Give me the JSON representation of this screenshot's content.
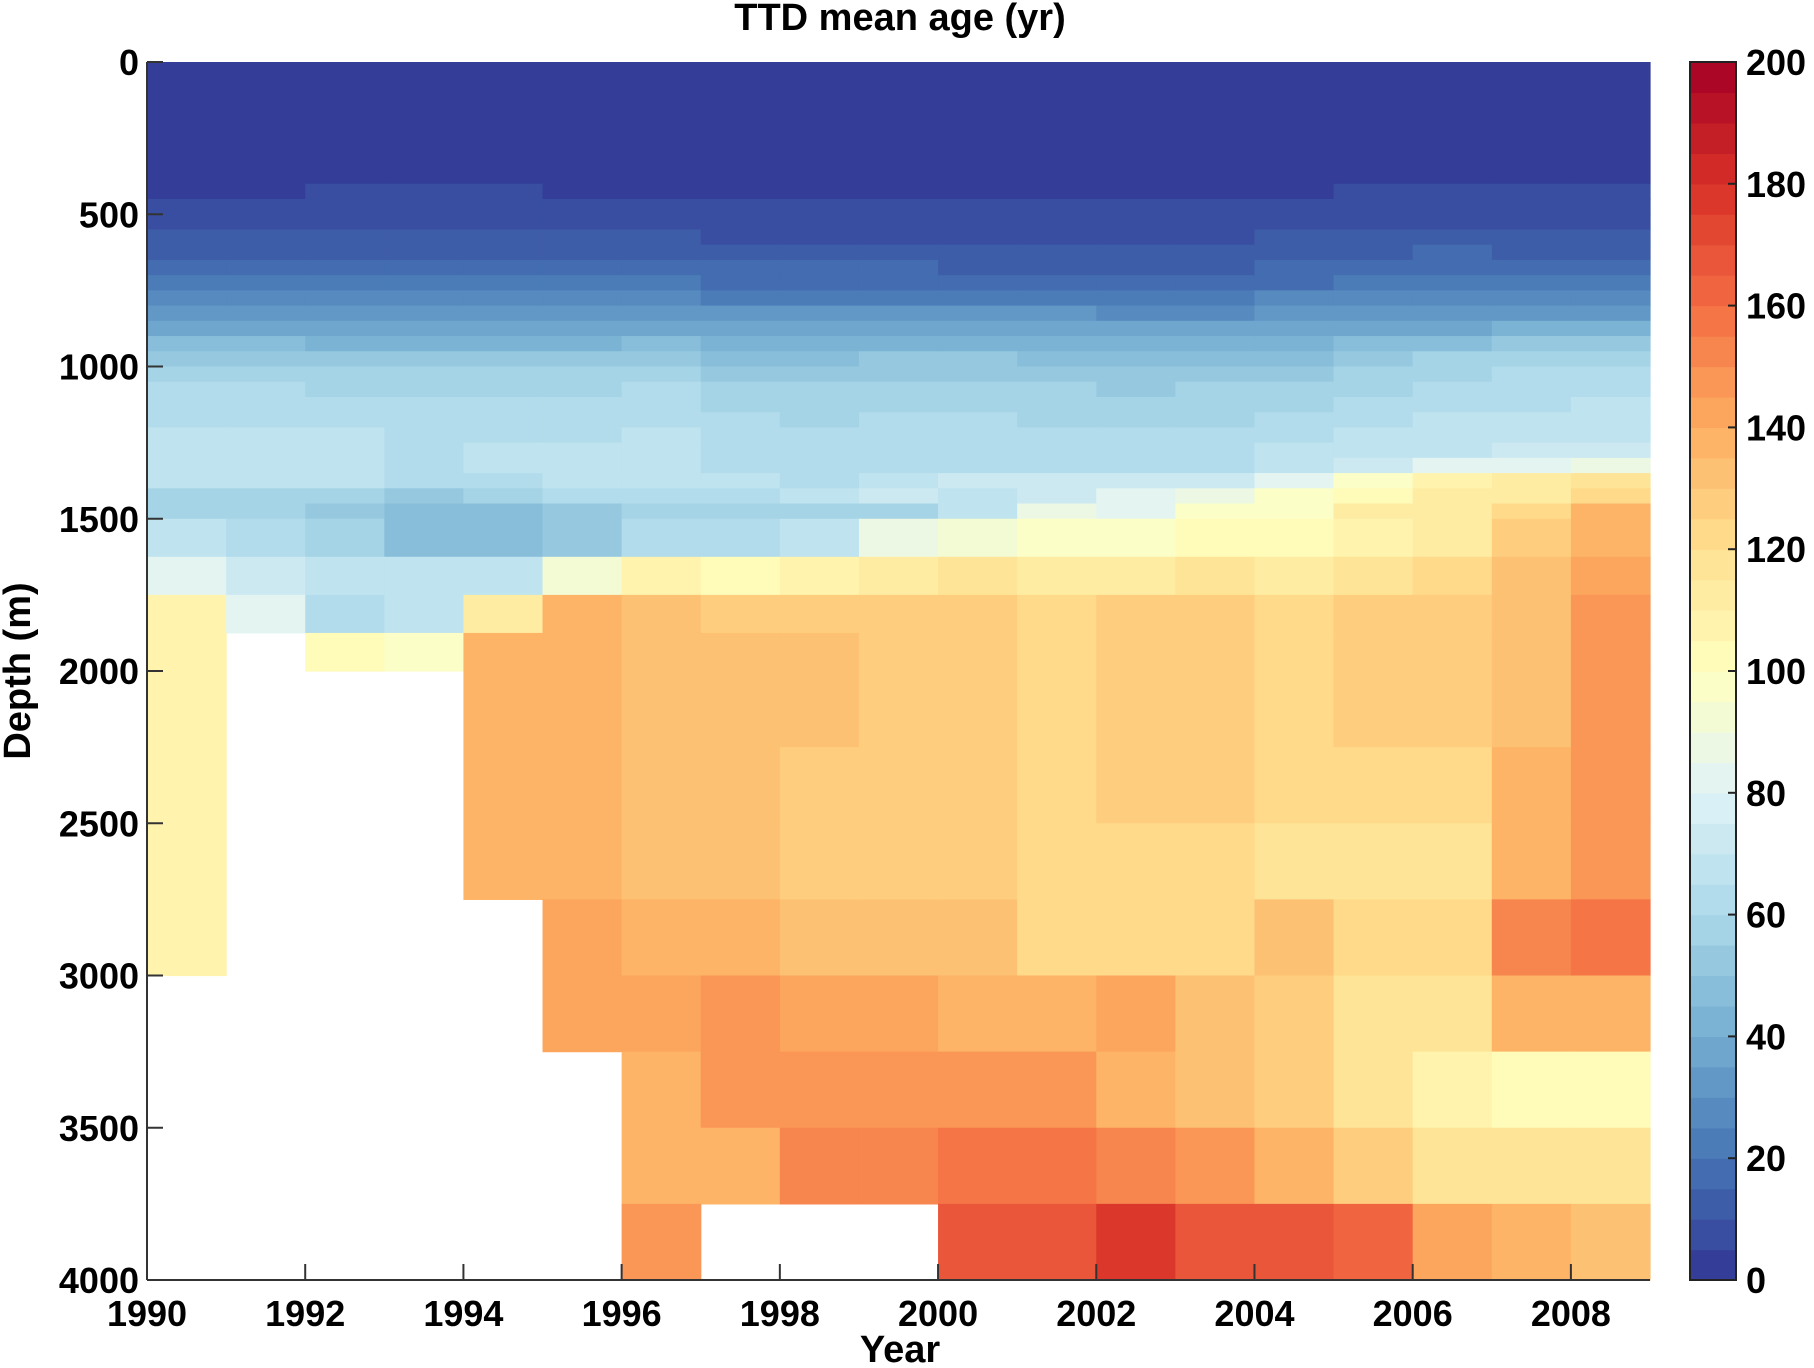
{
  "chart_data": {
    "type": "heatmap",
    "title": "TTD mean age (yr)",
    "xlabel": "Year",
    "ylabel": "Depth (m)",
    "xlim": [
      1990,
      2009
    ],
    "ylim": [
      0,
      4000
    ],
    "y_reversed": true,
    "xticks": [
      1990,
      1992,
      1994,
      1996,
      1998,
      2000,
      2002,
      2004,
      2006,
      2008
    ],
    "xtick_labels": [
      "1990",
      "1992",
      "1994",
      "1996",
      "1998",
      "2000",
      "2002",
      "2004",
      "2006",
      "2008"
    ],
    "yticks": [
      0,
      500,
      1000,
      1500,
      2000,
      2500,
      3000,
      3500,
      4000
    ],
    "ytick_labels": [
      "0",
      "500",
      "1000",
      "1500",
      "2000",
      "2500",
      "3000",
      "3500",
      "4000"
    ],
    "years": [
      1990,
      1991,
      1992,
      1993,
      1994,
      1995,
      1996,
      1997,
      1998,
      1999,
      2000,
      2001,
      2002,
      2003,
      2004,
      2005,
      2006,
      2007,
      2008
    ],
    "depth_edges": [
      0,
      400,
      450,
      500,
      550,
      600,
      650,
      700,
      750,
      800,
      850,
      900,
      950,
      1000,
      1050,
      1100,
      1150,
      1200,
      1250,
      1300,
      1350,
      1400,
      1450,
      1500,
      1625,
      1750,
      1875,
      2000,
      2250,
      2500,
      2750,
      3000,
      3250,
      3500,
      3750,
      4000
    ],
    "values": [
      [
        2,
        2,
        2,
        2,
        2,
        2,
        2,
        2,
        2,
        2,
        2,
        2,
        2,
        2,
        2,
        2,
        2,
        2,
        2
      ],
      [
        2,
        2,
        7,
        7,
        7,
        2,
        2,
        2,
        2,
        2,
        2,
        2,
        2,
        2,
        2,
        7,
        7,
        7,
        7
      ],
      [
        7,
        7,
        7,
        7,
        7,
        7,
        7,
        7,
        7,
        7,
        7,
        7,
        7,
        7,
        7,
        7,
        7,
        7,
        7
      ],
      [
        7,
        7,
        7,
        7,
        7,
        7,
        7,
        7,
        7,
        7,
        7,
        7,
        7,
        7,
        7,
        7,
        7,
        7,
        7
      ],
      [
        12,
        12,
        12,
        12,
        12,
        12,
        12,
        7,
        7,
        7,
        7,
        7,
        7,
        7,
        12,
        12,
        12,
        12,
        12
      ],
      [
        12,
        12,
        12,
        12,
        12,
        12,
        12,
        12,
        12,
        12,
        12,
        12,
        12,
        12,
        12,
        12,
        17,
        12,
        12
      ],
      [
        17,
        17,
        17,
        17,
        17,
        17,
        17,
        17,
        17,
        17,
        12,
        12,
        12,
        12,
        17,
        17,
        17,
        17,
        17
      ],
      [
        22,
        22,
        22,
        22,
        22,
        22,
        22,
        17,
        17,
        17,
        17,
        17,
        17,
        17,
        17,
        22,
        22,
        22,
        22
      ],
      [
        27,
        27,
        27,
        27,
        27,
        27,
        27,
        22,
        22,
        22,
        22,
        22,
        22,
        22,
        27,
        27,
        27,
        27,
        27
      ],
      [
        32,
        32,
        32,
        32,
        32,
        32,
        32,
        32,
        32,
        32,
        32,
        32,
        27,
        27,
        32,
        32,
        32,
        32,
        32
      ],
      [
        37,
        37,
        37,
        37,
        37,
        37,
        37,
        37,
        37,
        37,
        37,
        37,
        37,
        37,
        37,
        37,
        37,
        42,
        42
      ],
      [
        47,
        47,
        42,
        42,
        42,
        42,
        47,
        42,
        42,
        42,
        42,
        42,
        42,
        42,
        42,
        47,
        47,
        52,
        52
      ],
      [
        52,
        52,
        52,
        52,
        52,
        52,
        52,
        47,
        47,
        52,
        52,
        47,
        47,
        47,
        47,
        52,
        57,
        57,
        57
      ],
      [
        57,
        57,
        57,
        57,
        57,
        57,
        57,
        52,
        52,
        52,
        52,
        52,
        52,
        52,
        52,
        57,
        57,
        62,
        62
      ],
      [
        62,
        62,
        57,
        57,
        57,
        57,
        62,
        57,
        57,
        57,
        57,
        57,
        52,
        57,
        57,
        57,
        62,
        62,
        62
      ],
      [
        62,
        62,
        62,
        62,
        62,
        62,
        62,
        57,
        57,
        57,
        57,
        57,
        57,
        57,
        57,
        62,
        62,
        62,
        67
      ],
      [
        62,
        62,
        62,
        62,
        62,
        62,
        62,
        62,
        57,
        62,
        62,
        57,
        57,
        57,
        62,
        62,
        67,
        67,
        67
      ],
      [
        67,
        67,
        67,
        62,
        62,
        62,
        67,
        62,
        62,
        62,
        62,
        62,
        62,
        62,
        62,
        67,
        67,
        67,
        67
      ],
      [
        67,
        67,
        67,
        62,
        67,
        67,
        67,
        62,
        62,
        62,
        62,
        62,
        62,
        62,
        67,
        67,
        67,
        72,
        72
      ],
      [
        67,
        67,
        67,
        62,
        67,
        67,
        67,
        62,
        62,
        62,
        62,
        62,
        62,
        62,
        67,
        72,
        80,
        80,
        87
      ],
      [
        67,
        67,
        67,
        62,
        62,
        67,
        67,
        67,
        62,
        67,
        72,
        72,
        72,
        72,
        82,
        97,
        107,
        112,
        117
      ],
      [
        57,
        57,
        57,
        52,
        57,
        62,
        62,
        62,
        67,
        72,
        67,
        72,
        82,
        87,
        97,
        102,
        112,
        112,
        122
      ],
      [
        57,
        57,
        52,
        47,
        47,
        52,
        57,
        57,
        57,
        57,
        67,
        87,
        82,
        97,
        97,
        112,
        112,
        122,
        137
      ],
      [
        67,
        62,
        57,
        47,
        47,
        52,
        62,
        62,
        67,
        87,
        92,
        97,
        97,
        102,
        102,
        107,
        112,
        127,
        137
      ],
      [
        80,
        72,
        67,
        67,
        67,
        92,
        107,
        102,
        107,
        112,
        117,
        112,
        112,
        117,
        112,
        117,
        122,
        132,
        142
      ],
      [
        107,
        80,
        62,
        67,
        112,
        137,
        132,
        127,
        127,
        127,
        127,
        122,
        127,
        127,
        122,
        127,
        127,
        132,
        147
      ],
      [
        107,
        null,
        102,
        97,
        137,
        137,
        132,
        132,
        132,
        127,
        127,
        122,
        127,
        127,
        122,
        127,
        127,
        132,
        147
      ],
      [
        107,
        null,
        null,
        null,
        137,
        137,
        132,
        132,
        132,
        127,
        127,
        122,
        127,
        127,
        122,
        127,
        127,
        132,
        147
      ],
      [
        107,
        null,
        null,
        null,
        137,
        137,
        132,
        132,
        127,
        127,
        127,
        122,
        127,
        127,
        122,
        122,
        122,
        137,
        147
      ],
      [
        107,
        null,
        null,
        null,
        137,
        137,
        132,
        132,
        127,
        127,
        127,
        122,
        122,
        122,
        117,
        117,
        117,
        137,
        147
      ],
      [
        107,
        null,
        null,
        null,
        null,
        142,
        137,
        137,
        132,
        132,
        132,
        122,
        122,
        122,
        132,
        122,
        122,
        152,
        157
      ],
      [
        null,
        null,
        null,
        null,
        null,
        142,
        142,
        147,
        142,
        142,
        137,
        137,
        142,
        132,
        127,
        117,
        117,
        137,
        137
      ],
      [
        null,
        null,
        null,
        null,
        null,
        null,
        137,
        147,
        147,
        147,
        147,
        147,
        137,
        132,
        127,
        117,
        107,
        102,
        102
      ],
      [
        null,
        null,
        null,
        null,
        null,
        null,
        137,
        137,
        152,
        152,
        157,
        157,
        152,
        147,
        137,
        127,
        117,
        117,
        117
      ],
      [
        null,
        null,
        null,
        null,
        null,
        null,
        147,
        null,
        null,
        null,
        167,
        167,
        177,
        167,
        167,
        162,
        142,
        137,
        132
      ]
    ],
    "colorbar": {
      "range": [
        0,
        200
      ],
      "levels": 40,
      "ticks": [
        0,
        20,
        40,
        60,
        80,
        100,
        120,
        140,
        160,
        180,
        200
      ],
      "tick_labels": [
        "0",
        "20",
        "40",
        "60",
        "80",
        "100",
        "120",
        "140",
        "160",
        "180",
        "200"
      ],
      "colormap_anchors": [
        "#313695",
        "#4575b4",
        "#74add1",
        "#abd9e9",
        "#e0f3f8",
        "#ffffbf",
        "#fee090",
        "#fdae61",
        "#f46d43",
        "#d73027",
        "#a50026"
      ]
    },
    "missing_color": "#ffffff",
    "grid": false,
    "legend": "colorbar-right"
  }
}
